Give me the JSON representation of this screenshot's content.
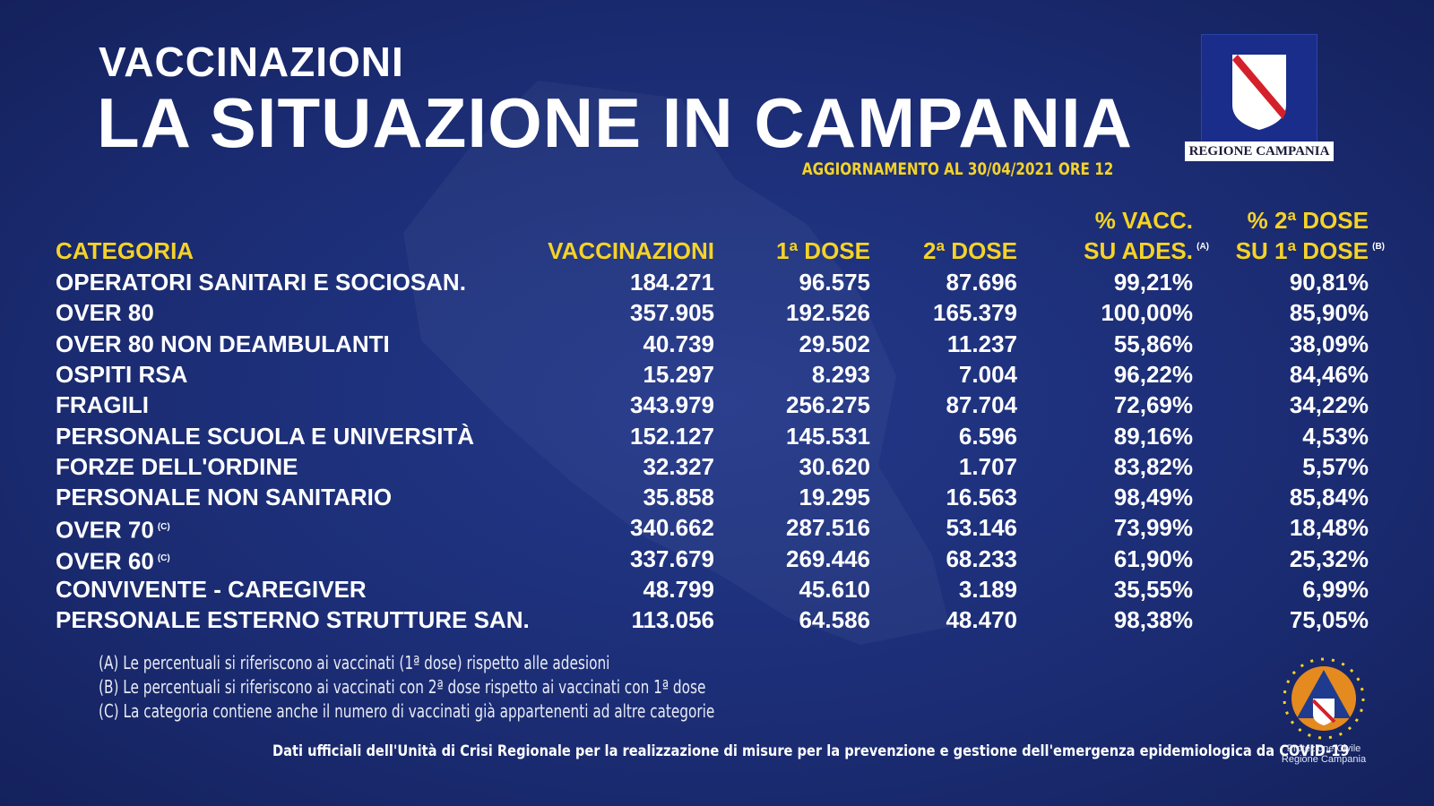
{
  "header": {
    "kicker": "VACCINAZIONI",
    "title": "LA SITUAZIONE IN CAMPANIA",
    "update": "AGGIORNAMENTO AL 30/04/2021 ORE 12"
  },
  "logo": {
    "label": "REGIONE CAMPANIA"
  },
  "table": {
    "columns": [
      {
        "lines": [
          "CATEGORIA"
        ]
      },
      {
        "lines": [
          "VACCINAZIONI"
        ]
      },
      {
        "lines": [
          "1ª DOSE"
        ]
      },
      {
        "lines": [
          "2ª DOSE"
        ]
      },
      {
        "lines": [
          "% VACC.",
          "SU ADES."
        ],
        "note": "(A)"
      },
      {
        "lines": [
          "% 2ª DOSE",
          "SU 1ª DOSE"
        ],
        "note": "(B)"
      }
    ],
    "rows": [
      {
        "label": "OPERATORI SANITARI E SOCIOSAN.",
        "values": [
          "184.271",
          "96.575",
          "87.696",
          "99,21%",
          "90,81%"
        ]
      },
      {
        "label": "OVER 80",
        "values": [
          "357.905",
          "192.526",
          "165.379",
          "100,00%",
          "85,90%"
        ]
      },
      {
        "label": "OVER 80 NON DEAMBULANTI",
        "values": [
          "40.739",
          "29.502",
          "11.237",
          "55,86%",
          "38,09%"
        ]
      },
      {
        "label": "OSPITI RSA",
        "values": [
          "15.297",
          "8.293",
          "7.004",
          "96,22%",
          "84,46%"
        ]
      },
      {
        "label": "FRAGILI",
        "values": [
          "343.979",
          "256.275",
          "87.704",
          "72,69%",
          "34,22%"
        ]
      },
      {
        "label": "PERSONALE SCUOLA E UNIVERSITÀ",
        "values": [
          "152.127",
          "145.531",
          "6.596",
          "89,16%",
          "4,53%"
        ]
      },
      {
        "label": "FORZE DELL'ORDINE",
        "values": [
          "32.327",
          "30.620",
          "1.707",
          "83,82%",
          "5,57%"
        ]
      },
      {
        "label": "PERSONALE NON SANITARIO",
        "values": [
          "35.858",
          "19.295",
          "16.563",
          "98,49%",
          "85,84%"
        ]
      },
      {
        "label": "OVER 70",
        "note": "(C)",
        "values": [
          "340.662",
          "287.516",
          "53.146",
          "73,99%",
          "18,48%"
        ]
      },
      {
        "label": "OVER 60",
        "note": "(C)",
        "values": [
          "337.679",
          "269.446",
          "68.233",
          "61,90%",
          "25,32%"
        ]
      },
      {
        "label": "CONVIVENTE - CAREGIVER",
        "values": [
          "48.799",
          "45.610",
          "3.189",
          "35,55%",
          "6,99%"
        ]
      },
      {
        "label": "PERSONALE ESTERNO STRUTTURE SAN.",
        "values": [
          "113.056",
          "64.586",
          "48.470",
          "98,38%",
          "75,05%"
        ]
      }
    ]
  },
  "footnotes": [
    "(A) Le percentuali si riferiscono ai vaccinati (1ª dose) rispetto alle adesioni",
    "(B) Le percentuali si riferiscono ai vaccinati con 2ª dose rispetto ai vaccinati con 1ª dose",
    "(C) La categoria contiene anche il numero di vaccinati già appartenenti ad altre categorie"
  ],
  "source": "Dati ufficiali dell'Unità di Crisi Regionale per la realizzazione di misure per la prevenzione e gestione dell'emergenza epidemiologica da COVID-19",
  "civil_protection": {
    "line1": "Protezione Civile",
    "line2": "Regione Campania"
  }
}
